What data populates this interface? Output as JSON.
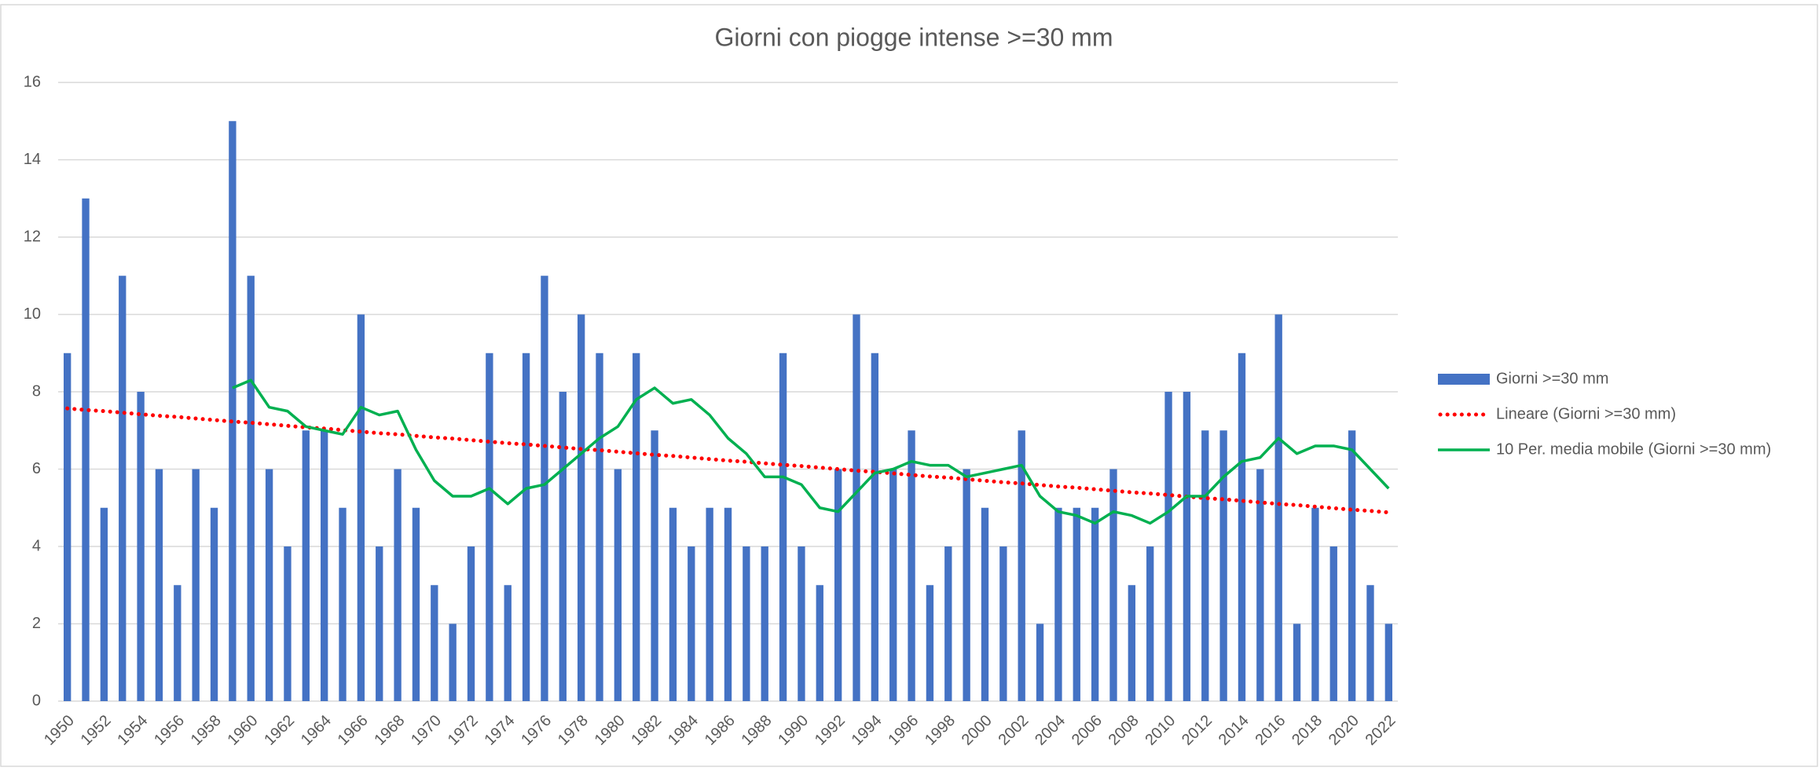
{
  "chart_data": {
    "type": "bar",
    "title": "Giorni con piogge intense >=30 mm",
    "categories": [
      "1950",
      null,
      "1952",
      null,
      "1954",
      null,
      "1956",
      null,
      "1958",
      null,
      "1960",
      null,
      "1962",
      null,
      "1964",
      null,
      "1966",
      null,
      "1968",
      null,
      "1970",
      null,
      "1972",
      null,
      "1974",
      null,
      "1976",
      null,
      "1978",
      null,
      "1980",
      null,
      "1982",
      null,
      "1984",
      null,
      "1986",
      null,
      "1988",
      null,
      "1990",
      null,
      "1992",
      null,
      "1994",
      null,
      "1996",
      null,
      "1998",
      null,
      "2000",
      null,
      "2002",
      null,
      "2004",
      null,
      "2006",
      null,
      "2008",
      null,
      "2010",
      null,
      "2012",
      null,
      "2014",
      null,
      "2016",
      null,
      "2018",
      null,
      "2020",
      null,
      "2022"
    ],
    "series": [
      {
        "name": "Giorni >=30 mm",
        "type": "bar",
        "color": "#4472c4",
        "values": [
          9,
          13,
          5,
          11,
          8,
          6,
          3,
          6,
          5,
          15,
          11,
          6,
          4,
          7,
          7,
          5,
          10,
          4,
          6,
          5,
          3,
          2,
          4,
          9,
          3,
          9,
          11,
          8,
          10,
          9,
          6,
          9,
          7,
          5,
          4,
          5,
          5,
          4,
          4,
          9,
          4,
          3,
          6,
          10,
          9,
          6,
          7,
          3,
          4,
          6,
          5,
          4,
          7,
          2,
          5,
          5,
          5,
          6,
          3,
          4,
          8,
          8,
          7,
          7,
          9,
          6,
          10,
          2,
          5,
          4,
          7,
          3,
          2
        ]
      },
      {
        "name": "Lineare (Giorni >=30 mm)",
        "type": "dotted",
        "color": "#ff0000",
        "values": [
          7.57,
          7.53,
          7.5,
          7.46,
          7.42,
          7.38,
          7.35,
          7.31,
          7.27,
          7.23,
          7.2,
          7.16,
          7.12,
          7.08,
          7.05,
          7.01,
          6.97,
          6.93,
          6.9,
          6.86,
          6.82,
          6.79,
          6.75,
          6.71,
          6.67,
          6.64,
          6.6,
          6.56,
          6.52,
          6.49,
          6.45,
          6.41,
          6.37,
          6.34,
          6.3,
          6.26,
          6.22,
          6.19,
          6.15,
          6.11,
          6.08,
          6.04,
          6.0,
          5.96,
          5.93,
          5.89,
          5.85,
          5.81,
          5.78,
          5.74,
          5.7,
          5.66,
          5.63,
          5.59,
          5.55,
          5.52,
          5.48,
          5.44,
          5.4,
          5.37,
          5.33,
          5.29,
          5.25,
          5.22,
          5.18,
          5.14,
          5.1,
          5.07,
          5.03,
          4.99,
          4.95,
          4.92,
          4.88
        ]
      },
      {
        "name": "10 Per. media mobile (Giorni >=30 mm)",
        "type": "line",
        "color": "#00b050",
        "values": [
          null,
          null,
          null,
          null,
          null,
          null,
          null,
          null,
          null,
          8.1,
          8.3,
          7.6,
          7.5,
          7.1,
          7.0,
          6.9,
          7.6,
          7.4,
          7.5,
          6.5,
          5.7,
          5.3,
          5.3,
          5.5,
          5.1,
          5.5,
          5.6,
          6.0,
          6.4,
          6.8,
          7.1,
          7.8,
          8.1,
          7.7,
          7.8,
          7.4,
          6.8,
          6.4,
          5.8,
          5.8,
          5.6,
          5.0,
          4.9,
          5.4,
          5.9,
          6.0,
          6.2,
          6.1,
          6.1,
          5.8,
          5.9,
          6.0,
          6.1,
          5.3,
          4.9,
          4.8,
          4.6,
          4.9,
          4.8,
          4.6,
          4.9,
          5.3,
          5.3,
          5.8,
          6.2,
          6.3,
          6.8,
          6.4,
          6.6,
          6.6,
          6.5,
          6.0,
          5.5
        ]
      }
    ],
    "ylim": [
      0,
      16
    ],
    "yticks": [
      0,
      2,
      4,
      6,
      8,
      10,
      12,
      14,
      16
    ],
    "grid": true,
    "legend": "right"
  }
}
